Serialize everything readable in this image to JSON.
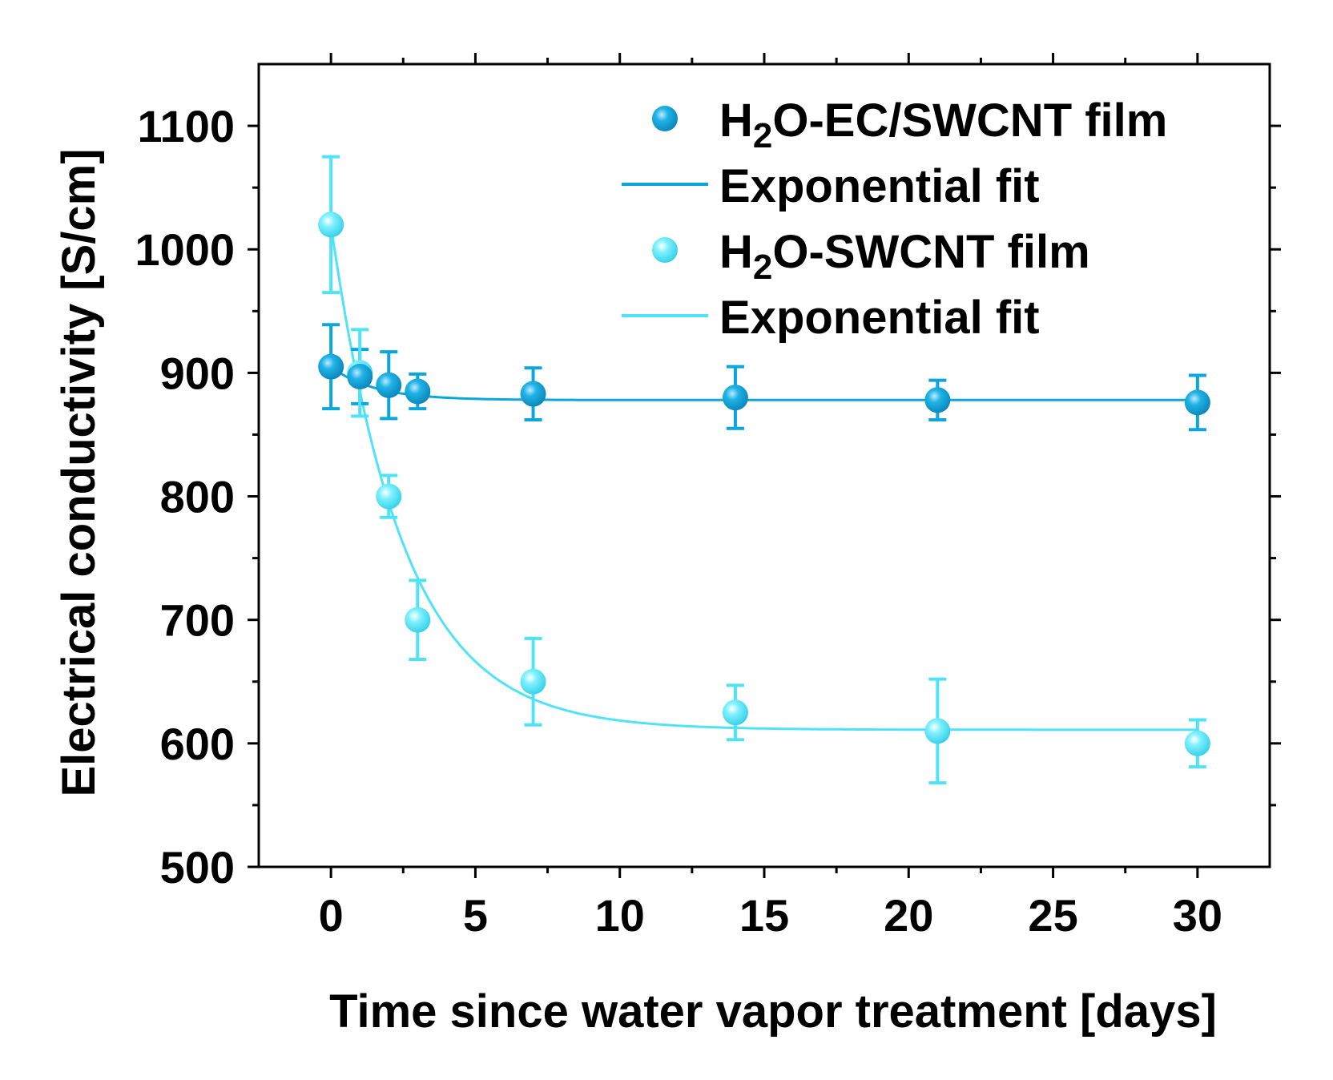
{
  "chart_data": {
    "type": "scatter",
    "xlabel": "Time since water vapor treatment [days]",
    "ylabel": "Electrical conductivity [S/cm]",
    "xlim": [
      -2.5,
      32.5
    ],
    "ylim": [
      500,
      1150
    ],
    "xticks": [
      0,
      5,
      10,
      15,
      20,
      25,
      30
    ],
    "yticks": [
      500,
      600,
      700,
      800,
      900,
      1000,
      1100
    ],
    "x_minor_step": 2.5,
    "y_minor_step": 50,
    "grid": false,
    "legend_position": "top-right",
    "series": [
      {
        "name": "H2O-EC/SWCNT film",
        "name_parts": {
          "pre": "H",
          "sub": "2",
          "post": "O-EC/SWCNT film"
        },
        "color": "#0aa6dc",
        "kind": "scatter",
        "x": [
          0,
          1,
          2,
          3,
          7,
          14,
          21,
          30
        ],
        "y": [
          905,
          897,
          890,
          885,
          883,
          880,
          878,
          876
        ],
        "err": [
          34,
          22,
          27,
          14,
          21,
          25,
          16,
          22
        ]
      },
      {
        "name": "Exponential fit",
        "color": "#0aa6dc",
        "kind": "line",
        "model": {
          "y0": 878,
          "A": 27,
          "tau": 1.5
        }
      },
      {
        "name": "H2O-SWCNT film",
        "name_parts": {
          "pre": "H",
          "sub": "2",
          "post": "O-SWCNT film"
        },
        "color": "#4fe3f8",
        "kind": "scatter",
        "x": [
          0,
          1,
          2,
          3,
          7,
          14,
          21,
          30
        ],
        "y": [
          1020,
          900,
          800,
          700,
          650,
          625,
          610,
          600
        ],
        "err": [
          55,
          35,
          17,
          32,
          35,
          22,
          42,
          19
        ]
      },
      {
        "name": "Exponential fit",
        "color": "#4fe3f8",
        "kind": "line",
        "model": {
          "y0": 611,
          "A": 409,
          "tau": 2.5
        }
      }
    ]
  }
}
